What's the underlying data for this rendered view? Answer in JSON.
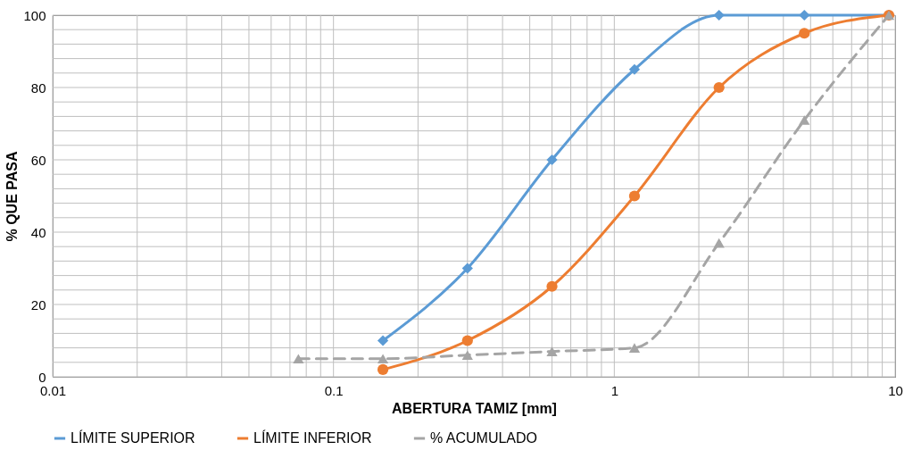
{
  "chart_data": {
    "type": "line",
    "xlabel": "ABERTURA TAMIZ [mm]",
    "ylabel": "% QUE PASA",
    "log": "x",
    "xlim": [
      0.01,
      10
    ],
    "xticks": [
      0.01,
      0.1,
      1,
      10
    ],
    "ylim": [
      0,
      100
    ],
    "yticks": [
      0,
      20,
      40,
      60,
      80,
      100
    ],
    "grid": true,
    "legend": "bottom",
    "series": [
      {
        "name": "LÍMITE SUPERIOR",
        "color": "#5b9bd5",
        "marker": "diamond",
        "line_style": "solid",
        "x": [
          0.15,
          0.3,
          0.6,
          1.18,
          2.36,
          4.75,
          9.5
        ],
        "values": [
          10,
          30,
          60,
          85,
          100,
          100,
          100
        ]
      },
      {
        "name": "LÍMITE INFERIOR",
        "color": "#ed7d31",
        "marker": "circle",
        "line_style": "solid",
        "x": [
          0.15,
          0.3,
          0.6,
          1.18,
          2.36,
          4.75,
          9.5
        ],
        "values": [
          2,
          10,
          25,
          50,
          80,
          95,
          100
        ]
      },
      {
        "name": "% ACUMULADO",
        "color": "#a5a5a5",
        "marker": "triangle",
        "line_style": "dashed",
        "x": [
          0.075,
          0.15,
          0.3,
          0.6,
          1.18,
          2.36,
          4.75,
          9.5
        ],
        "values": [
          5,
          5,
          6,
          7,
          8,
          37,
          71,
          100
        ]
      }
    ]
  }
}
